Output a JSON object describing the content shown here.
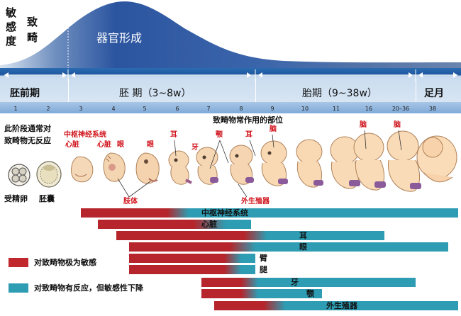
{
  "sensitivity": {
    "y_label": [
      "敏",
      "感",
      "度"
    ],
    "teratogen_label": [
      "致",
      "畸"
    ],
    "curve_label": "器官形成"
  },
  "periods": [
    {
      "name": "胚前期"
    },
    {
      "name": "胚  期（3~8w）"
    },
    {
      "name": "胎期（9~38w）"
    },
    {
      "name": "足月"
    }
  ],
  "weeks": [
    "1",
    "2",
    "3",
    "4",
    "5",
    "6",
    "7",
    "8",
    "9",
    "10",
    "11",
    "16",
    "20–36",
    "38"
  ],
  "annotations": {
    "pre_embryo_note_line1": "此阶段通常对",
    "pre_embryo_note_line2": "致畸物无反应",
    "fertilized_egg": "受精卵",
    "blastocyst": "胚囊",
    "site_title": "致畸物常作用的部位",
    "cns": "中枢神经系统",
    "heart": "心脏",
    "heart2": "心脏",
    "eye": "眼",
    "eye2": "眼",
    "ear": "耳",
    "ear2": "耳",
    "teeth": "牙",
    "jaw": "颚",
    "brain": "脑",
    "brain2": "脑",
    "brain3": "脑",
    "limbs": "肢体",
    "genitals": "外生殖器"
  },
  "legend": {
    "highly_sensitive": "对致畸物极为敏感",
    "reduced_sensitivity": "对致畸物有反应，但敏感性下降"
  },
  "colors": {
    "highly_sensitive": "#c0282e",
    "reduced_sensitivity": "#2e9cb2",
    "header_band": "#1f5fa3",
    "curve_fill": "#2c5aa0"
  },
  "sensitivity_bars": [
    {
      "organ": "中枢神经系统",
      "highly_sensitive_weeks": "3–5",
      "reduced_sensitivity_weeks": "6–38"
    },
    {
      "organ": "心脏",
      "highly_sensitive_weeks": "3–6",
      "reduced_sensitivity_weeks": "7–8"
    },
    {
      "organ": "耳",
      "highly_sensitive_weeks": "4–9",
      "reduced_sensitivity_weeks": "9–16"
    },
    {
      "organ": "眼",
      "highly_sensitive_weeks": "4–8",
      "reduced_sensitivity_weeks": "8–38"
    },
    {
      "organ": "臂",
      "highly_sensitive_weeks": "4–7",
      "reduced_sensitivity_weeks": "8"
    },
    {
      "organ": "腿",
      "highly_sensitive_weeks": "4–7",
      "reduced_sensitivity_weeks": "8"
    },
    {
      "organ": "牙",
      "highly_sensitive_weeks": "6–8",
      "reduced_sensitivity_weeks": "8–16"
    },
    {
      "organ": "颚",
      "highly_sensitive_weeks": "6–8",
      "reduced_sensitivity_weeks": "9"
    },
    {
      "organ": "外生殖器",
      "highly_sensitive_weeks": "7–9",
      "reduced_sensitivity_weeks": "9–38"
    }
  ]
}
